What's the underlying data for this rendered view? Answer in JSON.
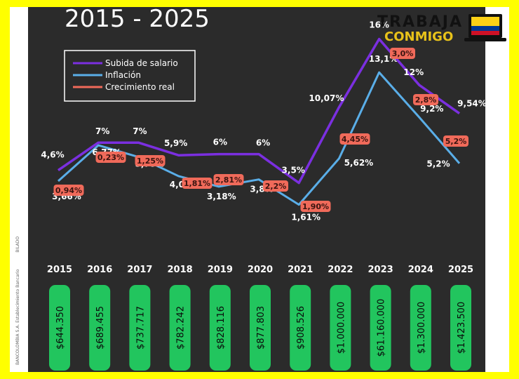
{
  "header": {
    "title": "2015 - 2025"
  },
  "logo": {
    "line1": "TRABAJA",
    "line2": "CONMIGO"
  },
  "side_caption": {
    "line1": "BANCOLOMBIA S.A. Establecimiento Bancario",
    "line2": "BILADO"
  },
  "colors": {
    "salary": "#7b2fe0",
    "inflation": "#5aaee8",
    "real_growth": "#f06a5a",
    "wage_pill": "#22c55e",
    "panel": "#2b2b2b",
    "frame": "#ffff00"
  },
  "chart_data": {
    "type": "line",
    "x": [
      "2015",
      "2016",
      "2017",
      "2018",
      "2019",
      "2020",
      "2021",
      "2022",
      "2023",
      "2024",
      "2025"
    ],
    "legend_position": "top-left",
    "series": [
      {
        "name": "Subida de salario",
        "values": [
          4.6,
          7,
          7,
          5.9,
          6,
          6,
          3.5,
          10.07,
          16,
          12,
          9.54
        ],
        "labels": [
          "4,6%",
          "7%",
          "7%",
          "5,9%",
          "6%",
          "6%",
          "3,5%",
          "10,07%",
          "16%",
          "12%",
          "9,54%"
        ]
      },
      {
        "name": "Inflación",
        "values": [
          3.66,
          6.77,
          5.75,
          4.09,
          3.18,
          3.8,
          1.61,
          5.62,
          13.1,
          9.2,
          5.2
        ],
        "labels": [
          "3,66%",
          "6,77%",
          "5,75%",
          "4,09%",
          "3,18%",
          "3,8%",
          "1,61%",
          "5,62%",
          "13,1%",
          "9,2%",
          "5,2%"
        ]
      },
      {
        "name": "Crecimiento real",
        "values": [
          0.94,
          0.23,
          1.25,
          1.81,
          2.81,
          2.2,
          1.9,
          4.45,
          3.0,
          2.8,
          5.2
        ],
        "labels": [
          "0,94%",
          "0,23%",
          "1,25%",
          "1,81%",
          "2,81%",
          "2,2%",
          "1,90%",
          "4,45%",
          "3,0%",
          "2,8%",
          "5,2%"
        ]
      }
    ],
    "minimum_wage": [
      "$644.350",
      "$689.455",
      "$737.717",
      "$782.242",
      "$828.116",
      "$877.803",
      "$908.526",
      "$1.000.000",
      "$61.160.000",
      "$1.300.000",
      "$1.423.500"
    ]
  }
}
